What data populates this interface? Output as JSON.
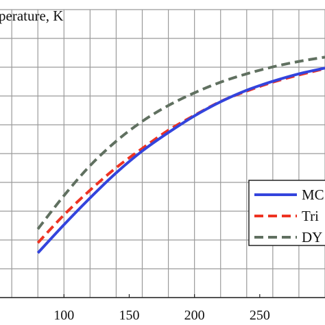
{
  "chart_data": {
    "type": "line",
    "ylabel": "perature, K",
    "xlim": [
      20,
      300
    ],
    "ylim": [
      0,
      1
    ],
    "grid": true,
    "legend_placement": "bottom-right",
    "x_ticks": [
      100,
      150,
      200,
      250
    ],
    "x_tick_labels": [
      "100",
      "150",
      "200",
      "250"
    ],
    "series": [
      {
        "name": "MC",
        "color": "#3344dd",
        "style": "solid",
        "x": [
          80,
          100,
          120,
          140,
          160,
          180,
          200,
          220,
          240,
          260,
          280,
          300
        ],
        "y": [
          0.155,
          0.253,
          0.346,
          0.433,
          0.509,
          0.573,
          0.631,
          0.68,
          0.72,
          0.751,
          0.777,
          0.797
        ]
      },
      {
        "name": "Tri",
        "color": "#ee3322",
        "style": "dashed",
        "x": [
          80,
          100,
          120,
          140,
          160,
          180,
          200,
          220,
          240,
          260,
          280,
          300
        ],
        "y": [
          0.19,
          0.287,
          0.373,
          0.451,
          0.518,
          0.581,
          0.633,
          0.681,
          0.717,
          0.748,
          0.773,
          0.795
        ]
      },
      {
        "name": "DY",
        "color": "#607060",
        "style": "dashed",
        "x": [
          80,
          100,
          120,
          140,
          160,
          180,
          200,
          220,
          240,
          260,
          280,
          300
        ],
        "y": [
          0.238,
          0.354,
          0.458,
          0.543,
          0.612,
          0.667,
          0.711,
          0.748,
          0.777,
          0.801,
          0.82,
          0.835
        ]
      }
    ]
  }
}
